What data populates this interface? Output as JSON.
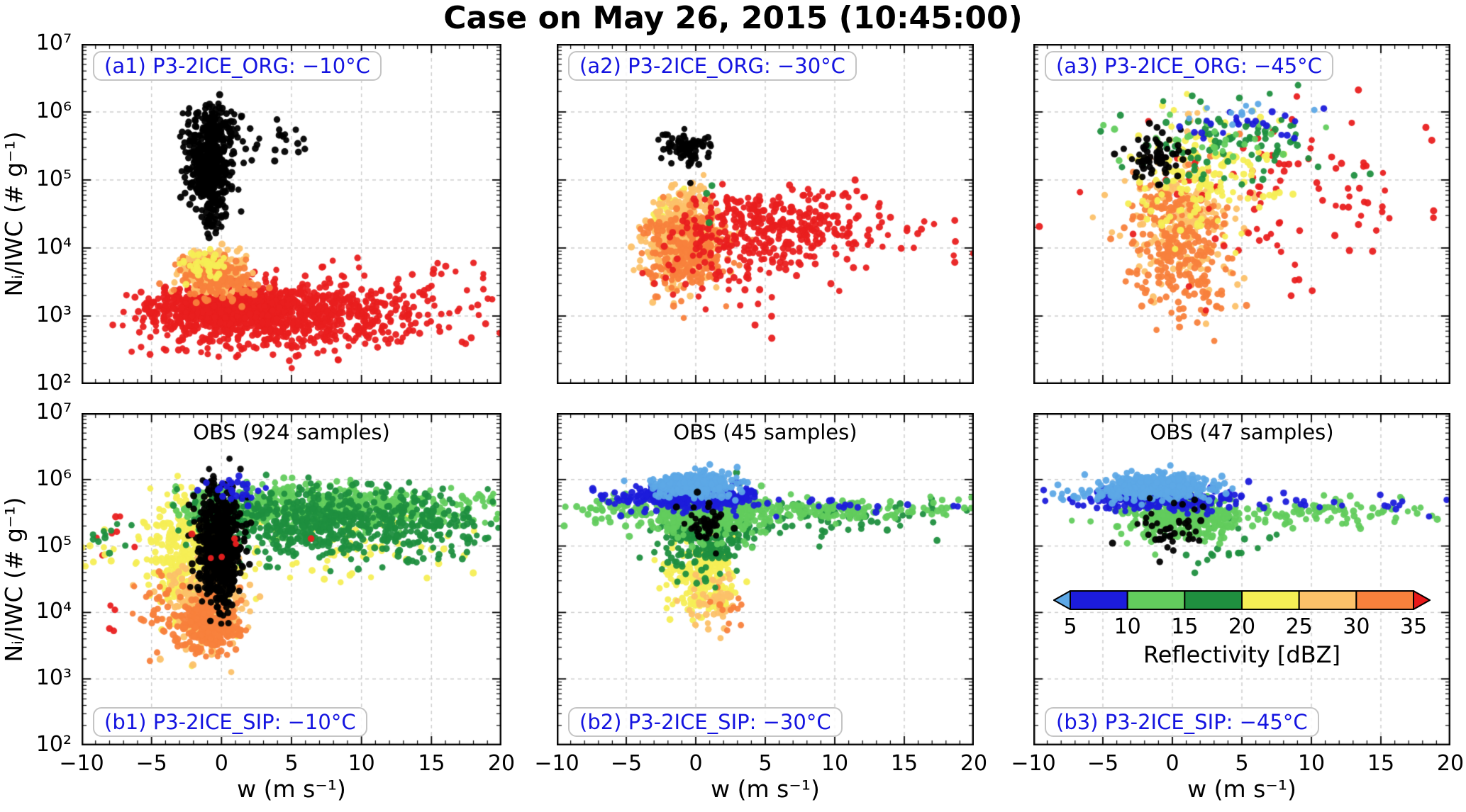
{
  "title": "Case on May 26, 2015 (10:45:00)",
  "chart_data": {
    "type": "scatter",
    "xlabel": "w (m s⁻¹)",
    "ylabel": "Nᵢ/IWC (# g⁻¹)",
    "xlim": [
      -10,
      20
    ],
    "ylim_log10": [
      2,
      7
    ],
    "x_ticks": [
      "−10",
      "−5",
      "0",
      "5",
      "10",
      "15",
      "20"
    ],
    "x_tick_values": [
      -10,
      -5,
      0,
      5,
      10,
      15,
      20
    ],
    "y_ticks": [
      "10⁷",
      "10⁶",
      "10⁵",
      "10⁴",
      "10³",
      "10²"
    ],
    "y_tick_exponents": [
      7,
      6,
      5,
      4,
      3,
      2
    ],
    "grid": "dashed",
    "palette": {
      "black": "#000000",
      "blue": "#1c1cdb",
      "lightblue": "#5da8e6",
      "lightgreen": "#62cc5d",
      "green": "#1f8f3f",
      "yellow": "#f5ee55",
      "sandy": "#fcc169",
      "orange": "#f8813c",
      "red": "#e91f1f"
    },
    "panels": [
      {
        "id": "a1",
        "tag": "(a1) P3-2ICE_ORG: −10°C",
        "tag_pos": "top",
        "obs": null,
        "clusters": [
          {
            "color": "red",
            "n": 800,
            "w": 0.5,
            "logN": 3.12,
            "w_sd": 2.8,
            "logN_sd": 0.16
          },
          {
            "color": "red",
            "n": 450,
            "w": 6.5,
            "logN": 3.02,
            "w_sd": 4.5,
            "logN_sd": 0.25,
            "w_min": -6
          },
          {
            "color": "red",
            "n": 120,
            "w": 1.0,
            "logN": 2.75,
            "w_sd": 3.5,
            "logN_sd": 0.2
          },
          {
            "color": "red",
            "n": 70,
            "w": 12.0,
            "logN": 3.25,
            "w_sd": 4.5,
            "logN_sd": 0.35,
            "w_min": 2
          },
          {
            "color": "sandy",
            "n": 260,
            "w": -0.6,
            "logN": 3.66,
            "w_sd": 1.1,
            "logN_sd": 0.14
          },
          {
            "color": "orange",
            "n": 160,
            "w": -0.3,
            "logN": 3.56,
            "w_sd": 1.3,
            "logN_sd": 0.16
          },
          {
            "color": "yellow",
            "n": 45,
            "w": -1.3,
            "logN": 3.74,
            "w_sd": 0.9,
            "logN_sd": 0.1
          },
          {
            "color": "black",
            "n": 420,
            "w": -0.8,
            "logN": 5.25,
            "w_sd": 0.85,
            "logN_sd": 0.33
          },
          {
            "color": "black",
            "n": 80,
            "w": -0.6,
            "logN": 5.85,
            "w_sd": 0.9,
            "logN_sd": 0.16
          },
          {
            "color": "black",
            "n": 60,
            "w": -0.6,
            "logN": 4.62,
            "w_sd": 0.5,
            "logN_sd": 0.25
          },
          {
            "color": "black",
            "n": 18,
            "w": 3.2,
            "logN": 5.65,
            "w_sd": 1.4,
            "logN_sd": 0.15
          }
        ]
      },
      {
        "id": "a2",
        "tag": "(a2) P3-2ICE_ORG: −30°C",
        "tag_pos": "top",
        "obs": null,
        "clusters": [
          {
            "color": "yellow",
            "n": 40,
            "w": -1.6,
            "logN": 4.45,
            "w_sd": 1.1,
            "logN_sd": 0.18
          },
          {
            "color": "sandy",
            "n": 420,
            "w": -0.9,
            "logN": 4.18,
            "w_sd": 1.3,
            "logN_sd": 0.33
          },
          {
            "color": "orange",
            "n": 260,
            "w": -0.7,
            "logN": 3.95,
            "w_sd": 1.4,
            "logN_sd": 0.3
          },
          {
            "color": "red",
            "n": 330,
            "w": 5.5,
            "logN": 4.35,
            "w_sd": 4.2,
            "logN_sd": 0.26,
            "w_min": -1
          },
          {
            "color": "red",
            "n": 90,
            "w": 2.5,
            "logN": 3.8,
            "w_sd": 3.0,
            "logN_sd": 0.35
          },
          {
            "color": "red",
            "n": 12,
            "w": 16.0,
            "logN": 4.2,
            "w_sd": 3.0,
            "logN_sd": 0.3
          },
          {
            "color": "green",
            "n": 3,
            "w": 0.6,
            "logN": 4.6,
            "w_sd": 0.7,
            "logN_sd": 0.35
          },
          {
            "color": "black",
            "n": 75,
            "w": -0.7,
            "logN": 5.5,
            "w_sd": 0.8,
            "logN_sd": 0.11
          },
          {
            "color": "black",
            "n": 10,
            "w": -0.2,
            "logN": 5.2,
            "w_sd": 0.5,
            "logN_sd": 0.18
          }
        ]
      },
      {
        "id": "a3",
        "tag": "(a3) P3-2ICE_ORG: −45°C",
        "tag_pos": "top",
        "obs": null,
        "clusters": [
          {
            "color": "sandy",
            "n": 190,
            "w": 0.8,
            "logN": 4.4,
            "w_sd": 2.0,
            "logN_sd": 0.5
          },
          {
            "color": "orange",
            "n": 260,
            "w": 0.5,
            "logN": 4.0,
            "w_sd": 1.8,
            "logN_sd": 0.55
          },
          {
            "color": "red",
            "n": 95,
            "w": 9.0,
            "logN": 4.8,
            "w_sd": 5.5,
            "logN_sd": 0.7
          },
          {
            "color": "yellow",
            "n": 150,
            "w": 2.5,
            "logN": 5.0,
            "w_sd": 2.6,
            "logN_sd": 0.45
          },
          {
            "color": "green",
            "n": 85,
            "w": 4.5,
            "logN": 5.5,
            "w_sd": 3.6,
            "logN_sd": 0.3
          },
          {
            "color": "lightgreen",
            "n": 30,
            "w": 4.0,
            "logN": 5.6,
            "w_sd": 3.2,
            "logN_sd": 0.28
          },
          {
            "color": "black",
            "n": 65,
            "w": -1.3,
            "logN": 5.35,
            "w_sd": 1.3,
            "logN_sd": 0.18
          },
          {
            "color": "blue",
            "n": 24,
            "w": 5.5,
            "logN": 5.8,
            "w_sd": 3.2,
            "logN_sd": 0.15
          },
          {
            "color": "lightblue",
            "n": 10,
            "w": 4.5,
            "logN": 6.0,
            "w_sd": 2.8,
            "logN_sd": 0.08
          }
        ]
      },
      {
        "id": "b1",
        "tag": "(b1) P3-2ICE_SIP: −10°C",
        "tag_pos": "bottom",
        "obs": "OBS (924 samples)",
        "clusters": [
          {
            "color": "red",
            "n": 9,
            "w": -7.5,
            "logN": 4.6,
            "w_sd": 1.0,
            "logN_sd": 0.45
          },
          {
            "color": "red",
            "n": 3,
            "w": -9.0,
            "logN": 4.95,
            "w_sd": 0.8,
            "logN_sd": 0.3
          },
          {
            "color": "yellow",
            "n": 420,
            "w": -2.2,
            "logN": 4.85,
            "w_sd": 1.5,
            "logN_sd": 0.45
          },
          {
            "color": "yellow",
            "n": 90,
            "w": 7.0,
            "logN": 5.05,
            "w_sd": 5.0,
            "logN_sd": 0.3,
            "w_min": 1
          },
          {
            "color": "yellow",
            "n": 10,
            "w": -8.5,
            "logN": 4.9,
            "w_sd": 1.0,
            "logN_sd": 0.2
          },
          {
            "color": "sandy",
            "n": 350,
            "w": -1.0,
            "logN": 4.1,
            "w_sd": 1.2,
            "logN_sd": 0.32
          },
          {
            "color": "orange",
            "n": 280,
            "w": -0.9,
            "logN": 3.82,
            "w_sd": 1.1,
            "logN_sd": 0.22
          },
          {
            "color": "orange",
            "n": 40,
            "w": -4.5,
            "logN": 4.1,
            "w_sd": 1.3,
            "logN_sd": 0.3
          },
          {
            "color": "lightgreen",
            "n": 520,
            "w": 6.0,
            "logN": 5.6,
            "w_sd": 5.0,
            "logN_sd": 0.16,
            "w_min": -3.5
          },
          {
            "color": "lightgreen",
            "n": 80,
            "w": 15.0,
            "logN": 5.55,
            "w_sd": 3.5,
            "logN_sd": 0.15
          },
          {
            "color": "green",
            "n": 560,
            "w": 7.0,
            "logN": 5.35,
            "w_sd": 5.2,
            "logN_sd": 0.26,
            "w_min": -3.5
          },
          {
            "color": "green",
            "n": 80,
            "w": 15.0,
            "logN": 5.3,
            "w_sd": 3.5,
            "logN_sd": 0.2
          },
          {
            "color": "green",
            "n": 12,
            "w": -8.0,
            "logN": 5.05,
            "w_sd": 1.2,
            "logN_sd": 0.15
          },
          {
            "color": "black",
            "n": 650,
            "w": -0.2,
            "logN": 5.0,
            "w_sd": 0.75,
            "logN_sd": 0.42
          },
          {
            "color": "blue",
            "n": 28,
            "w": 1.0,
            "logN": 5.85,
            "w_sd": 1.6,
            "logN_sd": 0.1
          },
          {
            "color": "red",
            "n": 6,
            "w": 2.0,
            "logN": 5.0,
            "w_sd": 3.0,
            "logN_sd": 0.5
          }
        ]
      },
      {
        "id": "b2",
        "tag": "(b2) P3-2ICE_SIP: −30°C",
        "tag_pos": "bottom",
        "obs": "OBS (45 samples)",
        "clusters": [
          {
            "color": "yellow",
            "n": 240,
            "w": 0.4,
            "logN": 4.6,
            "w_sd": 1.2,
            "logN_sd": 0.35
          },
          {
            "color": "sandy",
            "n": 55,
            "w": 1.4,
            "logN": 4.15,
            "w_sd": 0.9,
            "logN_sd": 0.2
          },
          {
            "color": "orange",
            "n": 12,
            "w": 2.0,
            "logN": 4.0,
            "w_sd": 0.8,
            "logN_sd": 0.15
          },
          {
            "color": "green",
            "n": 280,
            "w": 0.5,
            "logN": 5.15,
            "w_sd": 1.6,
            "logN_sd": 0.28
          },
          {
            "color": "green",
            "n": 70,
            "w": 9.0,
            "logN": 5.4,
            "w_sd": 5.5,
            "logN_sd": 0.12,
            "w_min": 3
          },
          {
            "color": "lightgreen",
            "n": 450,
            "w": 0.8,
            "logN": 5.5,
            "w_sd": 2.2,
            "logN_sd": 0.18
          },
          {
            "color": "lightgreen",
            "n": 160,
            "w": 10.0,
            "logN": 5.55,
            "w_sd": 5.5,
            "logN_sd": 0.08,
            "w_min": 3
          },
          {
            "color": "lightgreen",
            "n": 60,
            "w": -5.0,
            "logN": 5.55,
            "w_sd": 2.0,
            "logN_sd": 0.1
          },
          {
            "color": "blue",
            "n": 380,
            "w": 0.0,
            "logN": 5.75,
            "w_sd": 2.2,
            "logN_sd": 0.09
          },
          {
            "color": "blue",
            "n": 40,
            "w": -4.0,
            "logN": 5.72,
            "w_sd": 2.5,
            "logN_sd": 0.08
          },
          {
            "color": "blue",
            "n": 25,
            "w": 8.0,
            "logN": 5.62,
            "w_sd": 6.0,
            "logN_sd": 0.08
          },
          {
            "color": "lightblue",
            "n": 330,
            "w": 0.0,
            "logN": 5.92,
            "w_sd": 1.5,
            "logN_sd": 0.09
          },
          {
            "color": "black",
            "n": 42,
            "w": 0.6,
            "logN": 5.3,
            "w_sd": 0.9,
            "logN_sd": 0.22
          }
        ]
      },
      {
        "id": "b3",
        "tag": "(b3) P3-2ICE_SIP: −45°C",
        "tag_pos": "bottom",
        "obs": "OBS (47 samples)",
        "clusters": [
          {
            "color": "green",
            "n": 22,
            "w": 3.0,
            "logN": 5.05,
            "w_sd": 2.8,
            "logN_sd": 0.25
          },
          {
            "color": "lightgreen",
            "n": 330,
            "w": 0.5,
            "logN": 5.45,
            "w_sd": 2.0,
            "logN_sd": 0.18
          },
          {
            "color": "lightgreen",
            "n": 120,
            "w": 9.0,
            "logN": 5.5,
            "w_sd": 5.5,
            "logN_sd": 0.1,
            "w_min": 3
          },
          {
            "color": "blue",
            "n": 280,
            "w": -1.0,
            "logN": 5.72,
            "w_sd": 2.6,
            "logN_sd": 0.09
          },
          {
            "color": "blue",
            "n": 25,
            "w": 9.0,
            "logN": 5.62,
            "w_sd": 6.0,
            "logN_sd": 0.07
          },
          {
            "color": "lightblue",
            "n": 380,
            "w": -1.0,
            "logN": 5.9,
            "w_sd": 1.9,
            "logN_sd": 0.09
          },
          {
            "color": "lightblue",
            "n": 50,
            "w": -5.0,
            "logN": 5.8,
            "w_sd": 2.3,
            "logN_sd": 0.07
          },
          {
            "color": "black",
            "n": 45,
            "w": 0.0,
            "logN": 5.25,
            "w_sd": 1.5,
            "logN_sd": 0.22
          }
        ]
      }
    ],
    "colorbar": {
      "title": "Reflectivity [dBZ]",
      "tick_labels": [
        "5",
        "10",
        "15",
        "20",
        "25",
        "30",
        "35"
      ],
      "under_color": "#5da8e6",
      "over_color": "#e81919",
      "segments": [
        {
          "range": "5–10",
          "color": "#1c1cdb"
        },
        {
          "range": "10–15",
          "color": "#62cc5d"
        },
        {
          "range": "15–20",
          "color": "#1f8f3f"
        },
        {
          "range": "20–25",
          "color": "#f5ee55"
        },
        {
          "range": "25–30",
          "color": "#fcc169"
        },
        {
          "range": "30–35",
          "color": "#f8813c"
        }
      ]
    }
  }
}
